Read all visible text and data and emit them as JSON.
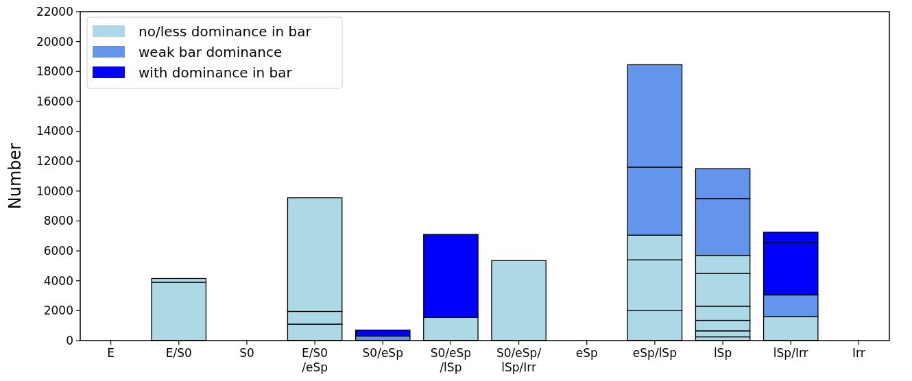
{
  "chart_data": {
    "type": "bar",
    "stacked": true,
    "ylabel": "Number",
    "categories": [
      "E",
      "E/S0",
      "S0",
      "E/S0\n/eSp",
      "S0/eSp",
      "S0/eSp\n/lSp",
      "S0/eSp/\nlSp/Irr",
      "eSp",
      "eSp/lSp",
      "lSp",
      "lSp/Irr",
      "Irr"
    ],
    "series": [
      {
        "name": "no/less dominance in bar",
        "color": "#add8e6",
        "values": [
          null,
          3900,
          null,
          1100,
          null,
          1550,
          5350,
          null,
          2000,
          250,
          1600,
          null
        ]
      },
      {
        "color": "#add8e6",
        "values": [
          null,
          250,
          null,
          850,
          null,
          null,
          null,
          null,
          3400,
          400,
          null,
          null
        ]
      },
      {
        "color": "#add8e6",
        "values": [
          null,
          null,
          null,
          7600,
          null,
          null,
          null,
          null,
          1650,
          700,
          null,
          null
        ]
      },
      {
        "color": "#add8e6",
        "values": [
          null,
          null,
          null,
          null,
          null,
          null,
          null,
          null,
          null,
          950,
          null,
          null
        ]
      },
      {
        "color": "#add8e6",
        "values": [
          null,
          null,
          null,
          null,
          null,
          null,
          null,
          null,
          null,
          2200,
          null,
          null
        ]
      },
      {
        "color": "#add8e6",
        "values": [
          null,
          null,
          null,
          null,
          null,
          null,
          null,
          null,
          null,
          1200,
          null,
          null
        ]
      },
      {
        "name": "weak bar dominance",
        "color": "#6495ed",
        "values": [
          null,
          null,
          null,
          null,
          300,
          null,
          null,
          null,
          4550,
          3800,
          1450,
          null
        ]
      },
      {
        "color": "#6495ed",
        "values": [
          null,
          null,
          null,
          null,
          null,
          null,
          null,
          null,
          6850,
          2000,
          null,
          null
        ]
      },
      {
        "name": "with dominance in bar",
        "color": "#0000ff",
        "values": [
          null,
          null,
          null,
          null,
          400,
          5550,
          null,
          null,
          null,
          null,
          3500,
          null
        ]
      },
      {
        "color": "#0000ff",
        "values": [
          null,
          null,
          null,
          null,
          null,
          null,
          null,
          null,
          null,
          null,
          700,
          null
        ]
      }
    ],
    "ylim": [
      0,
      22000
    ],
    "yticks": [
      0,
      2000,
      4000,
      6000,
      8000,
      10000,
      12000,
      14000,
      16000,
      18000,
      20000,
      22000
    ],
    "legend": "top left",
    "grid": false
  }
}
